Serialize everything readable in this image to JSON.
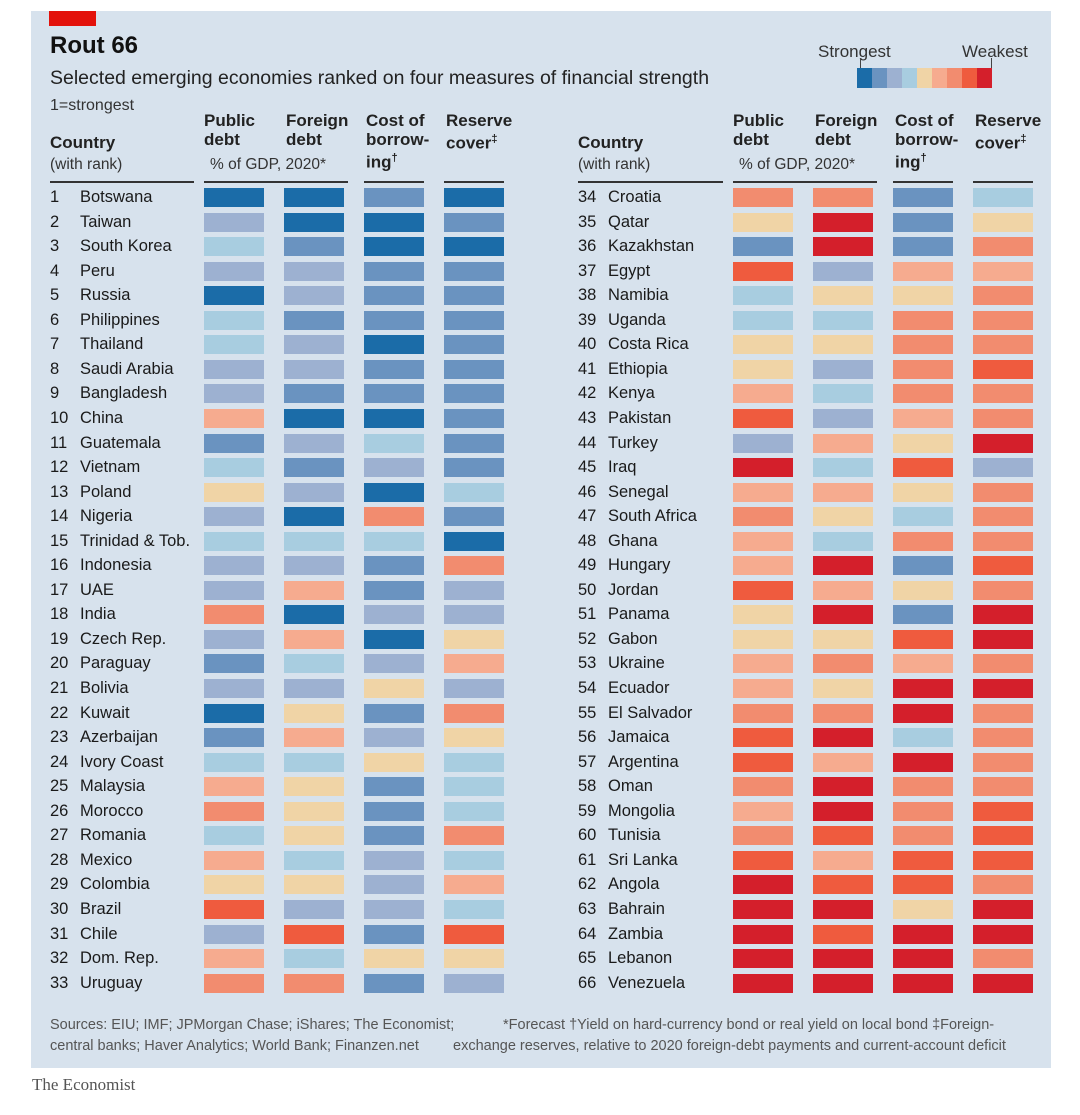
{
  "header": {
    "title": "Rout 66",
    "subtitle": "Selected emerging economies ranked on four measures of financial strength",
    "rank_note": "1=strongest",
    "legend": {
      "strongest": "Strongest",
      "weakest": "Weakest",
      "colors": [
        "#1b6ca8",
        "#6a93c0",
        "#9db1d1",
        "#a8cde0",
        "#f0d4a6",
        "#f6ab8f",
        "#f28c6f",
        "#ef5b3e",
        "#d41f2b"
      ]
    }
  },
  "columns": {
    "country": "Country",
    "country_sub": "(with rank)",
    "public_debt": [
      "Public",
      "debt"
    ],
    "foreign_debt": [
      "Foreign",
      "debt"
    ],
    "gdp_sub": "% of GDP, 2020*",
    "cost_of_borrowing": [
      "Cost of",
      "borrow-",
      "ing"
    ],
    "cost_mark": "†",
    "reserve_cover": [
      "Reserve",
      "cover"
    ],
    "reserve_mark": "‡"
  },
  "chart_data": {
    "type": "table",
    "title": "Rout 66",
    "subtitle": "Selected emerging economies ranked on four measures of financial strength",
    "scale_note": "Colour level 1 = strongest, 9 = weakest",
    "measures": [
      "Public debt",
      "Foreign debt",
      "Cost of borrowing",
      "Reserve cover"
    ],
    "rows": [
      {
        "rank": "1",
        "country": "Botswana",
        "levels": [
          1,
          1,
          2,
          1
        ]
      },
      {
        "rank": "2",
        "country": "Taiwan",
        "levels": [
          3,
          1,
          1,
          2
        ]
      },
      {
        "rank": "3",
        "country": "South Korea",
        "levels": [
          4,
          2,
          1,
          1
        ]
      },
      {
        "rank": "4",
        "country": "Peru",
        "levels": [
          3,
          3,
          2,
          2
        ]
      },
      {
        "rank": "5",
        "country": "Russia",
        "levels": [
          1,
          3,
          2,
          2
        ]
      },
      {
        "rank": "6",
        "country": "Philippines",
        "levels": [
          4,
          2,
          2,
          2
        ]
      },
      {
        "rank": "7",
        "country": "Thailand",
        "levels": [
          4,
          3,
          1,
          2
        ]
      },
      {
        "rank": "8",
        "country": "Saudi Arabia",
        "levels": [
          3,
          3,
          2,
          2
        ]
      },
      {
        "rank": "9",
        "country": "Bangladesh",
        "levels": [
          3,
          2,
          2,
          2
        ]
      },
      {
        "rank": "10",
        "country": "China",
        "levels": [
          6,
          1,
          1,
          2
        ]
      },
      {
        "rank": "11",
        "country": "Guatemala",
        "levels": [
          2,
          3,
          4,
          2
        ]
      },
      {
        "rank": "12",
        "country": "Vietnam",
        "levels": [
          4,
          2,
          3,
          2
        ]
      },
      {
        "rank": "13",
        "country": "Poland",
        "levels": [
          5,
          3,
          1,
          4
        ]
      },
      {
        "rank": "14",
        "country": "Nigeria",
        "levels": [
          3,
          1,
          7,
          2
        ]
      },
      {
        "rank": "15",
        "country": "Trinidad & Tob.",
        "levels": [
          4,
          4,
          4,
          1
        ]
      },
      {
        "rank": "16",
        "country": "Indonesia",
        "levels": [
          3,
          3,
          2,
          7
        ]
      },
      {
        "rank": "17",
        "country": "UAE",
        "levels": [
          3,
          6,
          2,
          3
        ]
      },
      {
        "rank": "18",
        "country": "India",
        "levels": [
          7,
          1,
          3,
          3
        ]
      },
      {
        "rank": "19",
        "country": "Czech Rep.",
        "levels": [
          3,
          6,
          1,
          5
        ]
      },
      {
        "rank": "20",
        "country": "Paraguay",
        "levels": [
          2,
          4,
          3,
          6
        ]
      },
      {
        "rank": "21",
        "country": "Bolivia",
        "levels": [
          3,
          3,
          5,
          3
        ]
      },
      {
        "rank": "22",
        "country": "Kuwait",
        "levels": [
          1,
          5,
          2,
          7
        ]
      },
      {
        "rank": "23",
        "country": "Azerbaijan",
        "levels": [
          2,
          6,
          3,
          5
        ]
      },
      {
        "rank": "24",
        "country": "Ivory Coast",
        "levels": [
          4,
          4,
          5,
          4
        ]
      },
      {
        "rank": "25",
        "country": "Malaysia",
        "levels": [
          6,
          5,
          2,
          4
        ]
      },
      {
        "rank": "26",
        "country": "Morocco",
        "levels": [
          7,
          5,
          2,
          4
        ]
      },
      {
        "rank": "27",
        "country": "Romania",
        "levels": [
          4,
          5,
          2,
          7
        ]
      },
      {
        "rank": "28",
        "country": "Mexico",
        "levels": [
          6,
          4,
          3,
          4
        ]
      },
      {
        "rank": "29",
        "country": "Colombia",
        "levels": [
          5,
          5,
          3,
          6
        ]
      },
      {
        "rank": "30",
        "country": "Brazil",
        "levels": [
          8,
          3,
          3,
          4
        ]
      },
      {
        "rank": "31",
        "country": "Chile",
        "levels": [
          3,
          8,
          2,
          8
        ]
      },
      {
        "rank": "32",
        "country": "Dom. Rep.",
        "levels": [
          6,
          4,
          5,
          5
        ]
      },
      {
        "rank": "33",
        "country": "Uruguay",
        "levels": [
          7,
          7,
          2,
          3
        ]
      },
      {
        "rank": "34",
        "country": "Croatia",
        "levels": [
          7,
          7,
          2,
          4
        ]
      },
      {
        "rank": "35",
        "country": "Qatar",
        "levels": [
          5,
          9,
          2,
          5
        ]
      },
      {
        "rank": "36",
        "country": "Kazakhstan",
        "levels": [
          2,
          9,
          2,
          7
        ]
      },
      {
        "rank": "37",
        "country": "Egypt",
        "levels": [
          8,
          3,
          6,
          6
        ]
      },
      {
        "rank": "38",
        "country": "Namibia",
        "levels": [
          4,
          5,
          5,
          7
        ]
      },
      {
        "rank": "39",
        "country": "Uganda",
        "levels": [
          4,
          4,
          7,
          7
        ]
      },
      {
        "rank": "40",
        "country": "Costa Rica",
        "levels": [
          5,
          5,
          7,
          7
        ]
      },
      {
        "rank": "41",
        "country": "Ethiopia",
        "levels": [
          5,
          3,
          7,
          8
        ]
      },
      {
        "rank": "42",
        "country": "Kenya",
        "levels": [
          6,
          4,
          7,
          7
        ]
      },
      {
        "rank": "43",
        "country": "Pakistan",
        "levels": [
          8,
          3,
          6,
          7
        ]
      },
      {
        "rank": "44",
        "country": "Turkey",
        "levels": [
          3,
          6,
          5,
          9
        ]
      },
      {
        "rank": "45",
        "country": "Iraq",
        "levels": [
          9,
          4,
          8,
          3
        ]
      },
      {
        "rank": "46",
        "country": "Senegal",
        "levels": [
          6,
          6,
          5,
          7
        ]
      },
      {
        "rank": "47",
        "country": "South Africa",
        "levels": [
          7,
          5,
          4,
          7
        ]
      },
      {
        "rank": "48",
        "country": "Ghana",
        "levels": [
          6,
          4,
          7,
          7
        ]
      },
      {
        "rank": "49",
        "country": "Hungary",
        "levels": [
          6,
          9,
          2,
          8
        ]
      },
      {
        "rank": "50",
        "country": "Jordan",
        "levels": [
          8,
          6,
          5,
          7
        ]
      },
      {
        "rank": "51",
        "country": "Panama",
        "levels": [
          5,
          9,
          2,
          9
        ]
      },
      {
        "rank": "52",
        "country": "Gabon",
        "levels": [
          5,
          5,
          8,
          9
        ]
      },
      {
        "rank": "53",
        "country": "Ukraine",
        "levels": [
          6,
          7,
          6,
          7
        ]
      },
      {
        "rank": "54",
        "country": "Ecuador",
        "levels": [
          6,
          5,
          9,
          9
        ]
      },
      {
        "rank": "55",
        "country": "El Salvador",
        "levels": [
          7,
          7,
          9,
          7
        ]
      },
      {
        "rank": "56",
        "country": "Jamaica",
        "levels": [
          8,
          9,
          4,
          7
        ]
      },
      {
        "rank": "57",
        "country": "Argentina",
        "levels": [
          8,
          6,
          9,
          7
        ]
      },
      {
        "rank": "58",
        "country": "Oman",
        "levels": [
          7,
          9,
          7,
          7
        ]
      },
      {
        "rank": "59",
        "country": "Mongolia",
        "levels": [
          6,
          9,
          7,
          8
        ]
      },
      {
        "rank": "60",
        "country": "Tunisia",
        "levels": [
          7,
          8,
          7,
          8
        ]
      },
      {
        "rank": "61",
        "country": "Sri Lanka",
        "levels": [
          8,
          6,
          8,
          8
        ]
      },
      {
        "rank": "62",
        "country": "Angola",
        "levels": [
          9,
          8,
          8,
          7
        ]
      },
      {
        "rank": "63",
        "country": "Bahrain",
        "levels": [
          9,
          9,
          5,
          9
        ]
      },
      {
        "rank": "64",
        "country": "Zambia",
        "levels": [
          9,
          8,
          9,
          9
        ]
      },
      {
        "rank": "65",
        "country": "Lebanon",
        "levels": [
          9,
          9,
          9,
          7
        ]
      },
      {
        "rank": "66",
        "country": "Venezuela",
        "levels": [
          9,
          9,
          9,
          9
        ]
      }
    ]
  },
  "footer": {
    "sources_line1": "Sources: EIU; IMF; JPMorgan Chase; iShares; The Economist;",
    "sources_line2": "central banks; Haver Analytics; World Bank; Finanzen.net",
    "notes_line1": "*Forecast   †Yield on hard-currency bond or real yield on local bond   ‡Foreign-",
    "notes_line2": "exchange reserves, relative to 2020 foreign-debt payments and current-account deficit",
    "brand": "The Economist"
  }
}
